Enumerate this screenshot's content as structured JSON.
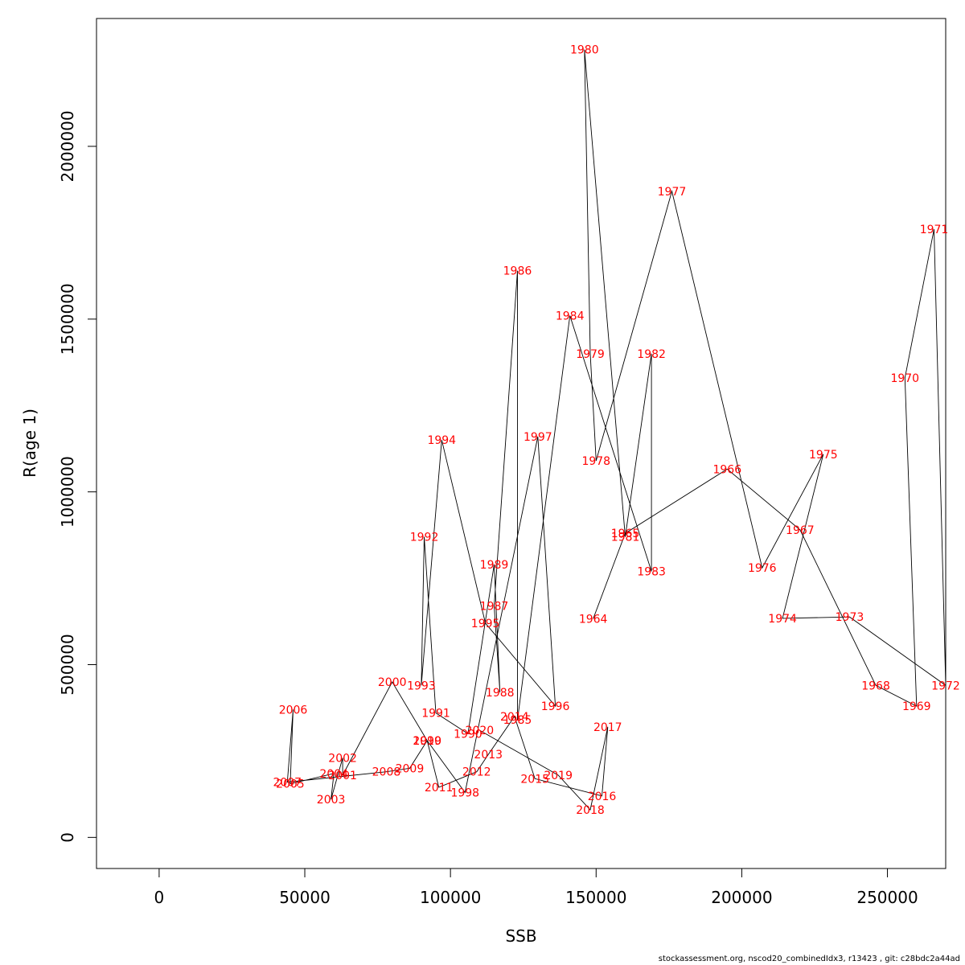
{
  "chart_data": {
    "type": "line",
    "title": "",
    "xlabel": "SSB",
    "ylabel": "R(age 1)",
    "xlim": [
      -21500,
      270000
    ],
    "ylim": [
      -90000,
      2370000
    ],
    "xticks": [
      0,
      50000,
      100000,
      150000,
      200000,
      250000
    ],
    "xtick_labels": [
      "0",
      "50000",
      "100000",
      "150000",
      "200000",
      "250000"
    ],
    "yticks": [
      0,
      500000,
      1000000,
      1500000,
      2000000
    ],
    "ytick_labels": [
      "0",
      "500000",
      "1000000",
      "1500000",
      "2000000"
    ],
    "grid": false,
    "line_color": "#000000",
    "label_color": "#ff0000",
    "points": [
      {
        "year": "1964",
        "x": 149000,
        "y": 633000
      },
      {
        "year": "1965",
        "x": 160000,
        "y": 880000
      },
      {
        "year": "1966",
        "x": 195000,
        "y": 1066000
      },
      {
        "year": "1967",
        "x": 220000,
        "y": 890000
      },
      {
        "year": "1968",
        "x": 246000,
        "y": 440000
      },
      {
        "year": "1969",
        "x": 260000,
        "y": 380000
      },
      {
        "year": "1970",
        "x": 256000,
        "y": 1330000
      },
      {
        "year": "1971",
        "x": 266000,
        "y": 1760000
      },
      {
        "year": "1972",
        "x": 270000,
        "y": 440000
      },
      {
        "year": "1973",
        "x": 237000,
        "y": 638000
      },
      {
        "year": "1974",
        "x": 214000,
        "y": 634000
      },
      {
        "year": "1975",
        "x": 228000,
        "y": 1109000
      },
      {
        "year": "1976",
        "x": 207000,
        "y": 780000
      },
      {
        "year": "1977",
        "x": 176000,
        "y": 1870000
      },
      {
        "year": "1978",
        "x": 150000,
        "y": 1090000
      },
      {
        "year": "1979",
        "x": 148000,
        "y": 1400000
      },
      {
        "year": "1980",
        "x": 146000,
        "y": 2280000
      },
      {
        "year": "1981",
        "x": 160000,
        "y": 870000
      },
      {
        "year": "1982",
        "x": 169000,
        "y": 1400000
      },
      {
        "year": "1983",
        "x": 169000,
        "y": 770000
      },
      {
        "year": "1984",
        "x": 141000,
        "y": 1510000
      },
      {
        "year": "1985",
        "x": 123000,
        "y": 340000
      },
      {
        "year": "1986",
        "x": 123000,
        "y": 1640000
      },
      {
        "year": "1987",
        "x": 115000,
        "y": 670000
      },
      {
        "year": "1988",
        "x": 117000,
        "y": 420000
      },
      {
        "year": "1989",
        "x": 115000,
        "y": 790000
      },
      {
        "year": "1990",
        "x": 106000,
        "y": 300000
      },
      {
        "year": "1991",
        "x": 95000,
        "y": 360000
      },
      {
        "year": "1992",
        "x": 91000,
        "y": 870000
      },
      {
        "year": "1993",
        "x": 90000,
        "y": 440000
      },
      {
        "year": "1994",
        "x": 97000,
        "y": 1150000
      },
      {
        "year": "1995",
        "x": 112000,
        "y": 620000
      },
      {
        "year": "1996",
        "x": 136000,
        "y": 380000
      },
      {
        "year": "1997",
        "x": 130000,
        "y": 1160000
      },
      {
        "year": "1998",
        "x": 105000,
        "y": 130000
      },
      {
        "year": "1999",
        "x": 92000,
        "y": 280000
      },
      {
        "year": "2000",
        "x": 80000,
        "y": 450000
      },
      {
        "year": "2001",
        "x": 63000,
        "y": 180000
      },
      {
        "year": "2002",
        "x": 63000,
        "y": 230000
      },
      {
        "year": "2003",
        "x": 59000,
        "y": 110000
      },
      {
        "year": "2004",
        "x": 60000,
        "y": 185000
      },
      {
        "year": "2005",
        "x": 45000,
        "y": 155000
      },
      {
        "year": "2006",
        "x": 46000,
        "y": 370000
      },
      {
        "year": "2007",
        "x": 44000,
        "y": 160000
      },
      {
        "year": "2008",
        "x": 78000,
        "y": 190000
      },
      {
        "year": "2009",
        "x": 86000,
        "y": 200000
      },
      {
        "year": "2010",
        "x": 92000,
        "y": 280000
      },
      {
        "year": "2011",
        "x": 96000,
        "y": 145000
      },
      {
        "year": "2012",
        "x": 109000,
        "y": 190000
      },
      {
        "year": "2013",
        "x": 113000,
        "y": 240000
      },
      {
        "year": "2014",
        "x": 122000,
        "y": 350000
      },
      {
        "year": "2015",
        "x": 129000,
        "y": 170000
      },
      {
        "year": "2016",
        "x": 152000,
        "y": 120000
      },
      {
        "year": "2017",
        "x": 154000,
        "y": 320000
      },
      {
        "year": "2018",
        "x": 148000,
        "y": 80000
      },
      {
        "year": "2019",
        "x": 137000,
        "y": 180000
      },
      {
        "year": "2020",
        "x": 110000,
        "y": 310000
      }
    ]
  },
  "footer_text": "stockassessment.org, nscod20_combinedIdx3, r13423 , git: c28bdc2a44ad"
}
